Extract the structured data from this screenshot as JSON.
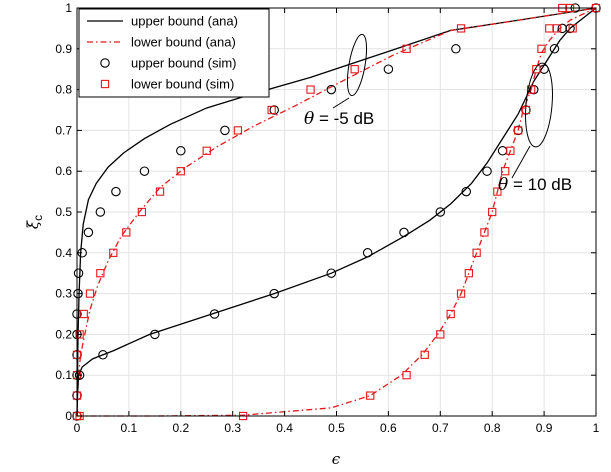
{
  "chart_data": {
    "type": "line",
    "xlabel": "ϵ",
    "ylabel": "ξ",
    "ylabel_sub": "c",
    "xlim": [
      0,
      1
    ],
    "ylim": [
      0,
      1
    ],
    "xticks": [
      0,
      0.1,
      0.2,
      0.3,
      0.4,
      0.5,
      0.6,
      0.7,
      0.8,
      0.9,
      1
    ],
    "xtick_labels": [
      "0",
      "0.1",
      "0.2",
      "0.3",
      "0.4",
      "0.5",
      "0.6",
      "0.7",
      "0.8",
      "0.9",
      "1"
    ],
    "yticks": [
      0,
      0.1,
      0.2,
      0.3,
      0.4,
      0.5,
      0.6,
      0.7,
      0.8,
      0.9,
      1
    ],
    "ytick_labels": [
      "0",
      "0.1",
      "0.2",
      "0.3",
      "0.4",
      "0.5",
      "0.6",
      "0.7",
      "0.8",
      "0.9",
      "1"
    ],
    "grid": true,
    "legend_position": "top-left",
    "legend": [
      {
        "label": "upper bound (ana)",
        "style": "line-solid",
        "color": "#000000"
      },
      {
        "label": "lower bound (ana)",
        "style": "line-dashdot",
        "color": "#e41a1c"
      },
      {
        "label": "upper bound (sim)",
        "style": "marker-circle",
        "color": "#000000"
      },
      {
        "label": "lower bound (sim)",
        "style": "marker-square",
        "color": "#e41a1c"
      }
    ],
    "annotations": [
      {
        "theta": "θ",
        "text": " = -5 dB"
      },
      {
        "theta": "θ",
        "text": " = 10 dB"
      }
    ],
    "series": [
      {
        "name": "upper bound (ana)",
        "group": "-5 dB",
        "kind": "line",
        "color": "#000000",
        "x": [
          0,
          0.001,
          0.002,
          0.004,
          0.007,
          0.012,
          0.022,
          0.037,
          0.06,
          0.09,
          0.13,
          0.18,
          0.25,
          0.34,
          0.45,
          0.58,
          0.72,
          0.85,
          0.95,
          1.0
        ],
        "y": [
          0,
          0.1,
          0.2,
          0.3,
          0.4,
          0.47,
          0.53,
          0.57,
          0.61,
          0.645,
          0.68,
          0.715,
          0.755,
          0.79,
          0.83,
          0.885,
          0.945,
          0.97,
          0.99,
          1.0
        ]
      },
      {
        "name": "lower bound (ana)",
        "group": "-5 dB",
        "kind": "line",
        "color": "#e41a1c",
        "x": [
          0,
          0.001,
          0.003,
          0.007,
          0.015,
          0.025,
          0.04,
          0.06,
          0.085,
          0.12,
          0.16,
          0.21,
          0.27,
          0.34,
          0.42,
          0.51,
          0.61,
          0.72,
          0.85,
          0.95,
          1.0
        ],
        "y": [
          0,
          0.05,
          0.1,
          0.15,
          0.2,
          0.26,
          0.32,
          0.38,
          0.44,
          0.5,
          0.56,
          0.61,
          0.66,
          0.71,
          0.76,
          0.82,
          0.885,
          0.945,
          0.97,
          0.99,
          1.0
        ]
      },
      {
        "name": "upper bound (ana)",
        "group": "10 dB",
        "kind": "line",
        "color": "#000000",
        "x": [
          0,
          0.001,
          0.003,
          0.01,
          0.03,
          0.07,
          0.14,
          0.26,
          0.38,
          0.49,
          0.56,
          0.63,
          0.68,
          0.72,
          0.76,
          0.79,
          0.81,
          0.83,
          0.85,
          0.865,
          0.88,
          0.9,
          0.915,
          0.93,
          0.95,
          1.0
        ],
        "y": [
          0,
          0.05,
          0.1,
          0.12,
          0.14,
          0.16,
          0.2,
          0.25,
          0.3,
          0.35,
          0.39,
          0.44,
          0.48,
          0.52,
          0.57,
          0.62,
          0.66,
          0.7,
          0.74,
          0.78,
          0.82,
          0.86,
          0.89,
          0.92,
          0.95,
          1.0
        ]
      },
      {
        "name": "lower bound (ana)",
        "group": "10 dB",
        "kind": "line",
        "color": "#e41a1c",
        "x": [
          0,
          0.05,
          0.15,
          0.32,
          0.49,
          0.565,
          0.625,
          0.665,
          0.695,
          0.72,
          0.74,
          0.755,
          0.77,
          0.785,
          0.8,
          0.81,
          0.82,
          0.835,
          0.85,
          0.86,
          0.875,
          0.885,
          0.895,
          0.91,
          0.93,
          0.95,
          1.0
        ],
        "y": [
          0,
          0.0,
          0.0,
          0.002,
          0.02,
          0.05,
          0.1,
          0.15,
          0.2,
          0.25,
          0.3,
          0.35,
          0.4,
          0.45,
          0.5,
          0.55,
          0.6,
          0.65,
          0.7,
          0.75,
          0.8,
          0.85,
          0.89,
          0.92,
          0.95,
          0.97,
          1.0
        ]
      },
      {
        "name": "upper bound (sim)",
        "group": "-5 dB",
        "kind": "marker-circle",
        "color": "#000000",
        "x": [
          0,
          0,
          0,
          0,
          0,
          0,
          0.002,
          0.003,
          0.01,
          0.022,
          0.045,
          0.075,
          0.13,
          0.2,
          0.285,
          0.38,
          0.49,
          0.6,
          0.73,
          0.95,
          1.0
        ],
        "y": [
          0.0,
          0.05,
          0.1,
          0.15,
          0.2,
          0.25,
          0.3,
          0.35,
          0.4,
          0.45,
          0.5,
          0.55,
          0.6,
          0.65,
          0.7,
          0.75,
          0.8,
          0.85,
          0.9,
          0.95,
          1.0
        ]
      },
      {
        "name": "lower bound (sim)",
        "group": "-5 dB",
        "kind": "marker-square",
        "color": "#e41a1c",
        "x": [
          0,
          0,
          0,
          0,
          0.005,
          0.013,
          0.025,
          0.045,
          0.07,
          0.095,
          0.125,
          0.16,
          0.2,
          0.25,
          0.31,
          0.375,
          0.45,
          0.535,
          0.635,
          0.74,
          0.955,
          1.0
        ],
        "y": [
          0.0,
          0.05,
          0.1,
          0.15,
          0.2,
          0.25,
          0.3,
          0.35,
          0.4,
          0.45,
          0.5,
          0.55,
          0.6,
          0.65,
          0.7,
          0.75,
          0.8,
          0.85,
          0.9,
          0.95,
          0.95,
          1.0
        ]
      },
      {
        "name": "upper bound (sim)",
        "group": "10 dB",
        "kind": "marker-circle",
        "color": "#000000",
        "x": [
          0.005,
          0.05,
          0.15,
          0.265,
          0.38,
          0.49,
          0.56,
          0.63,
          0.7,
          0.75,
          0.79,
          0.82,
          0.85,
          0.865,
          0.88,
          0.9,
          0.92,
          0.935,
          0.96
        ],
        "y": [
          0.1,
          0.15,
          0.2,
          0.25,
          0.3,
          0.35,
          0.4,
          0.45,
          0.5,
          0.55,
          0.6,
          0.65,
          0.7,
          0.75,
          0.8,
          0.85,
          0.9,
          0.95,
          1.0
        ]
      },
      {
        "name": "lower bound (sim)",
        "group": "10 dB",
        "kind": "marker-square",
        "color": "#e41a1c",
        "x": [
          0.005,
          0.32,
          0.565,
          0.635,
          0.67,
          0.7,
          0.72,
          0.74,
          0.755,
          0.77,
          0.785,
          0.8,
          0.81,
          0.825,
          0.835,
          0.85,
          0.865,
          0.875,
          0.885,
          0.895,
          0.91,
          0.925,
          0.935,
          0.95
        ],
        "y": [
          0.0,
          0.0,
          0.05,
          0.1,
          0.15,
          0.2,
          0.25,
          0.3,
          0.35,
          0.4,
          0.45,
          0.5,
          0.55,
          0.6,
          0.65,
          0.7,
          0.75,
          0.8,
          0.85,
          0.9,
          0.95,
          0.95,
          1.0,
          1.0
        ]
      }
    ]
  }
}
